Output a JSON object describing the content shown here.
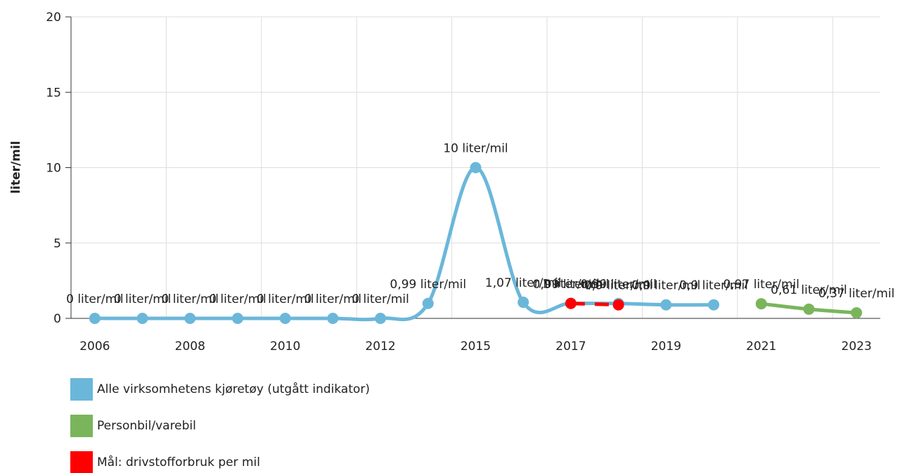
{
  "chart_data": {
    "type": "line",
    "y_label": "liter/mil",
    "categories": [
      "2006",
      null,
      "2008",
      null,
      "2010",
      null,
      "2012",
      null,
      "2015",
      null,
      "2017",
      null,
      "2019",
      null,
      "2021",
      null,
      "2023"
    ],
    "series": [
      {
        "name": "Alle virksomhetens kjøretøy (utgått indikator)",
        "color": "#6bb7da",
        "values": [
          0,
          0,
          0,
          0,
          0,
          0,
          0,
          0.99,
          10,
          1.07,
          1.0,
          0.99,
          0.9,
          0.9,
          null,
          null,
          null
        ],
        "value_labels": [
          "0 liter/mil",
          "0 liter/mil",
          "0 liter/mil",
          "0 liter/mil",
          "0 liter/mil",
          "0 liter/mil",
          "0 liter/mil",
          "0,99 liter/mil",
          "10 liter/mil",
          "1,07 liter/mil",
          "1 liter/mil",
          "0,99 liter/mil",
          "0,9 liter/mil",
          "0,9 liter/mil",
          null,
          null,
          null
        ]
      },
      {
        "name": "Personbil/varebil",
        "color": "#7ab55c",
        "values": [
          null,
          null,
          null,
          null,
          null,
          null,
          null,
          null,
          null,
          null,
          null,
          null,
          null,
          null,
          0.97,
          0.61,
          0.37
        ],
        "value_labels": [
          null,
          null,
          null,
          null,
          null,
          null,
          null,
          null,
          null,
          null,
          null,
          null,
          null,
          null,
          "0,97 liter/mil",
          "0,61 liter/mil",
          "0,37 liter/mil"
        ]
      },
      {
        "name": "Mål: drivstofforbruk per mil",
        "color": "#ff0000",
        "dashed": true,
        "values": [
          null,
          null,
          null,
          null,
          null,
          null,
          null,
          null,
          null,
          null,
          0.99,
          0.9,
          null,
          null,
          null,
          null,
          null
        ],
        "value_labels": [
          null,
          null,
          null,
          null,
          null,
          null,
          null,
          null,
          null,
          null,
          "0,99 liter/mil",
          "0,9 liter/mil",
          null,
          null,
          null,
          null,
          null
        ]
      }
    ],
    "ylim": [
      0,
      20
    ],
    "yticks": [
      0,
      5,
      10,
      15,
      20
    ],
    "grid": true
  }
}
